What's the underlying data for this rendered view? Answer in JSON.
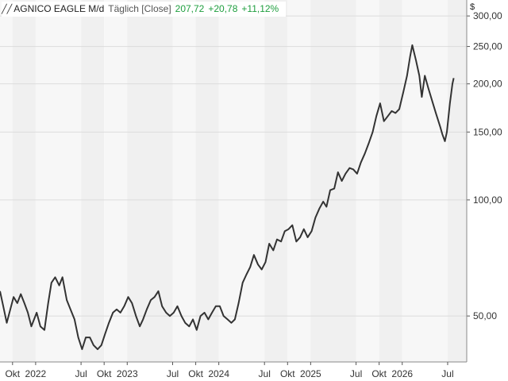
{
  "header": {
    "symbol": "AGNICO EAGLE M/d",
    "period": "Täglich [Close]",
    "last": "207,72",
    "change": "+20,78",
    "change_pct": "+11,12%",
    "icon": "line-chart-icon"
  },
  "currency": "$",
  "colors": {
    "line": "#333333",
    "band_dark": "#f0f0f0",
    "band_light": "#f7f7f7",
    "grid": "#dcdcdc",
    "positive": "#1e9e3e"
  },
  "chart_data": {
    "type": "line",
    "y_scale": "log",
    "ylim": [
      38,
      330
    ],
    "y_ticks": [
      {
        "value": 50,
        "label": "50,00"
      },
      {
        "value": 100,
        "label": "100,00"
      },
      {
        "value": 150,
        "label": "150,00"
      },
      {
        "value": 200,
        "label": "200,00"
      },
      {
        "value": 250,
        "label": "250,00"
      },
      {
        "value": 300,
        "label": "300,00"
      }
    ],
    "xlim": [
      "2021-08-12",
      "2026-09-15"
    ],
    "x_ticks": [
      {
        "date": "2021-10-01",
        "label": "Okt"
      },
      {
        "date": "2022-01-01",
        "label": "2022"
      },
      {
        "date": "2022-07-01",
        "label": "Jul"
      },
      {
        "date": "2022-10-01",
        "label": "Okt"
      },
      {
        "date": "2023-01-01",
        "label": "2023"
      },
      {
        "date": "2023-07-01",
        "label": "Jul"
      },
      {
        "date": "2023-10-01",
        "label": "Okt"
      },
      {
        "date": "2024-01-01",
        "label": "2024"
      },
      {
        "date": "2024-07-01",
        "label": "Jul"
      },
      {
        "date": "2024-10-01",
        "label": "Okt"
      },
      {
        "date": "2025-01-01",
        "label": "2025"
      },
      {
        "date": "2025-07-01",
        "label": "Jul"
      },
      {
        "date": "2025-10-01",
        "label": "Okt"
      },
      {
        "date": "2026-01-01",
        "label": "2026"
      },
      {
        "date": "2026-07-01",
        "label": "Jul"
      }
    ],
    "series": [
      {
        "points": [
          [
            "2021-08-12",
            58
          ],
          [
            "2021-08-25",
            53
          ],
          [
            "2021-09-08",
            48
          ],
          [
            "2021-09-22",
            52
          ],
          [
            "2021-10-05",
            56
          ],
          [
            "2021-10-20",
            54
          ],
          [
            "2021-11-03",
            57
          ],
          [
            "2021-11-17",
            54
          ],
          [
            "2021-12-01",
            51
          ],
          [
            "2021-12-15",
            47
          ],
          [
            "2022-01-05",
            51
          ],
          [
            "2022-01-20",
            47
          ],
          [
            "2022-02-05",
            46
          ],
          [
            "2022-02-20",
            54
          ],
          [
            "2022-03-05",
            61
          ],
          [
            "2022-03-20",
            63
          ],
          [
            "2022-04-05",
            60
          ],
          [
            "2022-04-18",
            63
          ],
          [
            "2022-05-05",
            55
          ],
          [
            "2022-05-20",
            52
          ],
          [
            "2022-06-05",
            49
          ],
          [
            "2022-06-20",
            44
          ],
          [
            "2022-07-05",
            41
          ],
          [
            "2022-07-20",
            44
          ],
          [
            "2022-08-05",
            44
          ],
          [
            "2022-08-20",
            42
          ],
          [
            "2022-09-05",
            41
          ],
          [
            "2022-09-20",
            42
          ],
          [
            "2022-10-05",
            45
          ],
          [
            "2022-10-20",
            48
          ],
          [
            "2022-11-05",
            51
          ],
          [
            "2022-11-20",
            52
          ],
          [
            "2022-12-05",
            51
          ],
          [
            "2022-12-20",
            53
          ],
          [
            "2023-01-05",
            56
          ],
          [
            "2023-01-20",
            54
          ],
          [
            "2023-02-05",
            50
          ],
          [
            "2023-02-20",
            47
          ],
          [
            "2023-03-05",
            49
          ],
          [
            "2023-03-20",
            52
          ],
          [
            "2023-04-05",
            55
          ],
          [
            "2023-04-20",
            56
          ],
          [
            "2023-05-05",
            58
          ],
          [
            "2023-05-20",
            53
          ],
          [
            "2023-06-05",
            51
          ],
          [
            "2023-06-20",
            50
          ],
          [
            "2023-07-05",
            51
          ],
          [
            "2023-07-20",
            53
          ],
          [
            "2023-08-05",
            50
          ],
          [
            "2023-08-20",
            48
          ],
          [
            "2023-09-05",
            47
          ],
          [
            "2023-09-20",
            49
          ],
          [
            "2023-10-05",
            46
          ],
          [
            "2023-10-20",
            50
          ],
          [
            "2023-11-05",
            51
          ],
          [
            "2023-11-20",
            49
          ],
          [
            "2023-12-05",
            51
          ],
          [
            "2023-12-20",
            53
          ],
          [
            "2024-01-05",
            53
          ],
          [
            "2024-01-20",
            50
          ],
          [
            "2024-02-05",
            49
          ],
          [
            "2024-02-20",
            48
          ],
          [
            "2024-03-05",
            49
          ],
          [
            "2024-03-20",
            54
          ],
          [
            "2024-04-05",
            61
          ],
          [
            "2024-04-20",
            64
          ],
          [
            "2024-05-05",
            67
          ],
          [
            "2024-05-20",
            72
          ],
          [
            "2024-06-05",
            68
          ],
          [
            "2024-06-20",
            66
          ],
          [
            "2024-07-05",
            69
          ],
          [
            "2024-07-20",
            77
          ],
          [
            "2024-08-05",
            74
          ],
          [
            "2024-08-20",
            79
          ],
          [
            "2024-09-05",
            78
          ],
          [
            "2024-09-20",
            83
          ],
          [
            "2024-10-05",
            84
          ],
          [
            "2024-10-20",
            86
          ],
          [
            "2024-11-05",
            78
          ],
          [
            "2024-11-20",
            80
          ],
          [
            "2024-12-05",
            84
          ],
          [
            "2024-12-20",
            80
          ],
          [
            "2025-01-05",
            83
          ],
          [
            "2025-01-20",
            90
          ],
          [
            "2025-02-05",
            95
          ],
          [
            "2025-02-20",
            99
          ],
          [
            "2025-03-05",
            96
          ],
          [
            "2025-03-20",
            106
          ],
          [
            "2025-04-05",
            107
          ],
          [
            "2025-04-20",
            118
          ],
          [
            "2025-05-05",
            112
          ],
          [
            "2025-05-20",
            117
          ],
          [
            "2025-06-05",
            121
          ],
          [
            "2025-06-20",
            120
          ],
          [
            "2025-07-05",
            117
          ],
          [
            "2025-07-20",
            125
          ],
          [
            "2025-08-05",
            132
          ],
          [
            "2025-08-20",
            140
          ],
          [
            "2025-09-05",
            150
          ],
          [
            "2025-09-20",
            165
          ],
          [
            "2025-10-05",
            178
          ],
          [
            "2025-10-20",
            160
          ],
          [
            "2025-11-05",
            165
          ],
          [
            "2025-11-20",
            170
          ],
          [
            "2025-12-05",
            168
          ],
          [
            "2025-12-20",
            172
          ],
          [
            "2026-01-05",
            190
          ],
          [
            "2026-01-20",
            210
          ],
          [
            "2026-02-01",
            235
          ],
          [
            "2026-02-10",
            252
          ],
          [
            "2026-02-25",
            230
          ],
          [
            "2026-03-10",
            210
          ],
          [
            "2026-03-20",
            185
          ],
          [
            "2026-04-01",
            210
          ],
          [
            "2026-04-15",
            195
          ],
          [
            "2026-05-01",
            180
          ],
          [
            "2026-05-15",
            168
          ],
          [
            "2026-06-01",
            155
          ],
          [
            "2026-06-10",
            148
          ],
          [
            "2026-06-20",
            142
          ],
          [
            "2026-06-28",
            150
          ],
          [
            "2026-07-10",
            178
          ],
          [
            "2026-07-20",
            200
          ],
          [
            "2026-07-25",
            207
          ]
        ]
      }
    ]
  }
}
